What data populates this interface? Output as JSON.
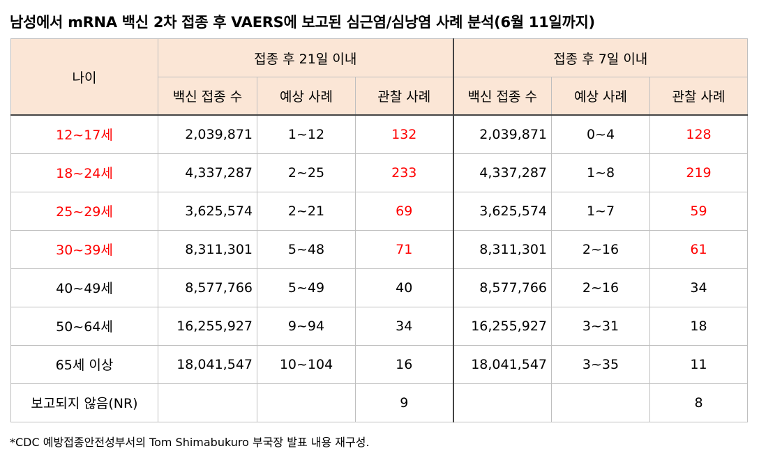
{
  "title": "남성에서 mRNA 백신 2차 접종 후 VAERS에 보고된 심근염/심낭염 사례 분석(6월 11일까지)",
  "header": {
    "age": "나이",
    "group1": "접종 후 21일 이내",
    "group2": "접종 후 7일 이내",
    "col_vaccinated": "백신 접종 수",
    "col_expected": "예상 사례",
    "col_observed": "관찰 사례"
  },
  "rows": [
    {
      "age": "12~17세",
      "vac21": "2,039,871",
      "exp21": "1~12",
      "obs21": "132",
      "vac7": "2,039,871",
      "exp7": "0~4",
      "obs7": "128"
    },
    {
      "age": "18~24세",
      "vac21": "4,337,287",
      "exp21": "2~25",
      "obs21": "233",
      "vac7": "4,337,287",
      "exp7": "1~8",
      "obs7": "219"
    },
    {
      "age": "25~29세",
      "vac21": "3,625,574",
      "exp21": "2~21",
      "obs21": "69",
      "vac7": "3,625,574",
      "exp7": "1~7",
      "obs7": "59"
    },
    {
      "age": "30~39세",
      "vac21": "8,311,301",
      "exp21": "5~48",
      "obs21": "71",
      "vac7": "8,311,301",
      "exp7": "2~16",
      "obs7": "61"
    },
    {
      "age": "40~49세",
      "vac21": "8,577,766",
      "exp21": "5~49",
      "obs21": "40",
      "vac7": "8,577,766",
      "exp7": "2~16",
      "obs7": "34"
    },
    {
      "age": "50~64세",
      "vac21": "16,255,927",
      "exp21": "9~94",
      "obs21": "34",
      "vac7": "16,255,927",
      "exp7": "3~31",
      "obs7": "18"
    },
    {
      "age": "65세 이상",
      "vac21": "18,041,547",
      "exp21": "10~104",
      "obs21": "16",
      "vac7": "18,041,547",
      "exp7": "3~35",
      "obs7": "11"
    },
    {
      "age": "보고되지 않음(NR)",
      "vac21": "",
      "exp21": "",
      "obs21": "9",
      "vac7": "",
      "exp7": "",
      "obs7": "8"
    }
  ],
  "highlight_color": "#ff0000",
  "header_bg": "#fbe6d6",
  "footnote": "*CDC 예방접종안전성부서의 Tom Shimabukuro 부국장 발표 내용 재구성."
}
